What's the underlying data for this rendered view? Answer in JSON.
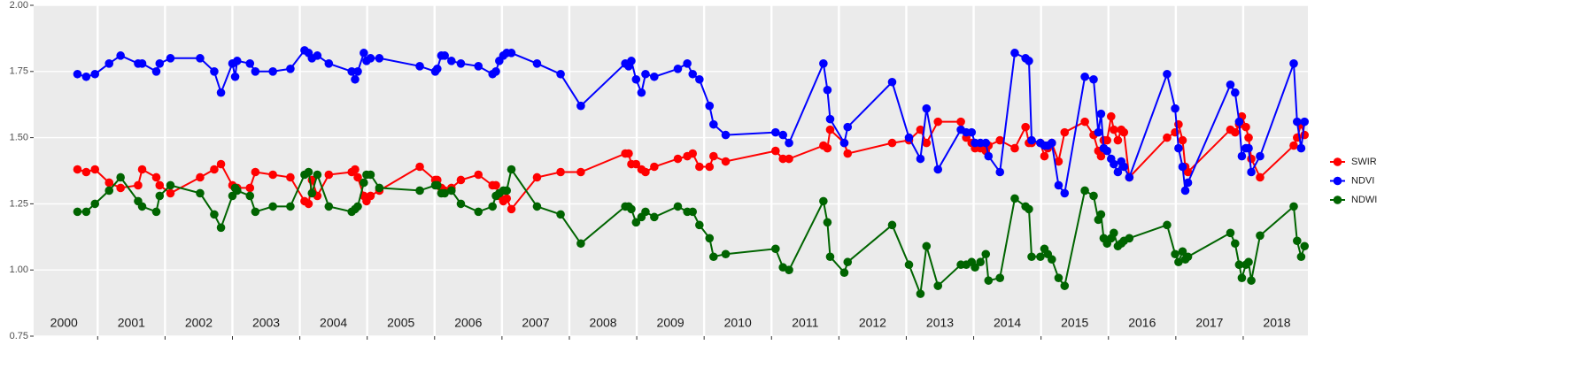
{
  "chart_data": {
    "type": "line",
    "x": [
      2000.7,
      2000.83,
      2000.96,
      2001.17,
      2001.34,
      2001.6,
      2001.66,
      2001.87,
      2001.92,
      2002.08,
      2002.52,
      2002.73,
      2002.83,
      2003.0,
      2003.04,
      2003.07,
      2003.26,
      2003.34,
      2003.6,
      2003.86,
      2004.07,
      2004.13,
      2004.18,
      2004.26,
      2004.43,
      2004.77,
      2004.82,
      2004.86,
      2004.95,
      2004.99,
      2005.05,
      2005.18,
      2005.78,
      2006.01,
      2006.04,
      2006.1,
      2006.15,
      2006.25,
      2006.39,
      2006.65,
      2006.86,
      2006.91,
      2006.96,
      2007.02,
      2007.07,
      2007.14,
      2007.52,
      2007.87,
      2008.17,
      2008.83,
      2008.88,
      2008.92,
      2008.99,
      2009.07,
      2009.13,
      2009.26,
      2009.61,
      2009.75,
      2009.83,
      2009.93,
      2010.08,
      2010.14,
      2010.32,
      2011.06,
      2011.17,
      2011.26,
      2011.77,
      2011.83,
      2011.87,
      2012.08,
      2012.13,
      2012.79,
      2013.04,
      2013.21,
      2013.3,
      2013.47,
      2013.81,
      2013.89,
      2013.97,
      2014.02,
      2014.1,
      2014.18,
      2014.22,
      2014.39,
      2014.61,
      2014.77,
      2014.82,
      2014.86,
      2014.99,
      2015.05,
      2015.1,
      2015.16,
      2015.26,
      2015.35,
      2015.65,
      2015.78,
      2015.85,
      2015.89,
      2015.93,
      2015.98,
      2016.04,
      2016.08,
      2016.14,
      2016.19,
      2016.23,
      2016.31,
      2016.87,
      2016.99,
      2017.04,
      2017.1,
      2017.14,
      2017.18,
      2017.81,
      2017.88,
      2017.94,
      2017.98,
      2018.04,
      2018.08,
      2018.12,
      2018.25,
      2018.75,
      2018.8,
      2018.86,
      2018.91
    ],
    "series": [
      {
        "name": "SWIR",
        "color": "#ff0000",
        "values": [
          1.38,
          1.37,
          1.38,
          1.33,
          1.31,
          1.32,
          1.38,
          1.35,
          1.32,
          1.29,
          1.35,
          1.38,
          1.4,
          1.32,
          1.31,
          1.31,
          1.31,
          1.37,
          1.36,
          1.35,
          1.26,
          1.25,
          1.34,
          1.28,
          1.36,
          1.37,
          1.38,
          1.35,
          1.28,
          1.26,
          1.28,
          1.3,
          1.39,
          1.34,
          1.34,
          1.31,
          1.3,
          1.31,
          1.34,
          1.36,
          1.32,
          1.32,
          1.28,
          1.26,
          1.27,
          1.23,
          1.35,
          1.37,
          1.37,
          1.44,
          1.44,
          1.4,
          1.4,
          1.38,
          1.37,
          1.39,
          1.42,
          1.43,
          1.44,
          1.39,
          1.39,
          1.43,
          1.41,
          1.45,
          1.42,
          1.42,
          1.47,
          1.46,
          1.53,
          1.48,
          1.44,
          1.48,
          1.49,
          1.53,
          1.48,
          1.56,
          1.56,
          1.5,
          1.48,
          1.46,
          1.46,
          1.45,
          1.47,
          1.49,
          1.46,
          1.54,
          1.48,
          1.48,
          1.48,
          1.43,
          1.46,
          1.48,
          1.41,
          1.52,
          1.56,
          1.51,
          1.45,
          1.43,
          1.49,
          1.49,
          1.58,
          1.53,
          1.49,
          1.53,
          1.52,
          1.35,
          1.5,
          1.52,
          1.55,
          1.49,
          1.39,
          1.37,
          1.53,
          1.52,
          1.55,
          1.58,
          1.54,
          1.5,
          1.42,
          1.35,
          1.47,
          1.5,
          1.55,
          1.51
        ]
      },
      {
        "name": "NDVI",
        "color": "#0000ff",
        "values": [
          1.74,
          1.73,
          1.74,
          1.78,
          1.81,
          1.78,
          1.78,
          1.75,
          1.78,
          1.8,
          1.8,
          1.75,
          1.67,
          1.78,
          1.73,
          1.79,
          1.78,
          1.75,
          1.75,
          1.76,
          1.83,
          1.82,
          1.8,
          1.81,
          1.78,
          1.75,
          1.72,
          1.75,
          1.82,
          1.79,
          1.8,
          1.8,
          1.77,
          1.75,
          1.76,
          1.81,
          1.81,
          1.79,
          1.78,
          1.77,
          1.74,
          1.75,
          1.79,
          1.81,
          1.82,
          1.82,
          1.78,
          1.74,
          1.62,
          1.78,
          1.77,
          1.79,
          1.72,
          1.67,
          1.74,
          1.73,
          1.76,
          1.78,
          1.74,
          1.72,
          1.62,
          1.55,
          1.51,
          1.52,
          1.51,
          1.48,
          1.78,
          1.68,
          1.57,
          1.48,
          1.54,
          1.71,
          1.5,
          1.42,
          1.61,
          1.38,
          1.53,
          1.52,
          1.52,
          1.48,
          1.48,
          1.48,
          1.43,
          1.37,
          1.82,
          1.8,
          1.79,
          1.49,
          1.48,
          1.47,
          1.47,
          1.48,
          1.32,
          1.29,
          1.73,
          1.72,
          1.52,
          1.59,
          1.46,
          1.45,
          1.42,
          1.4,
          1.37,
          1.41,
          1.39,
          1.35,
          1.74,
          1.61,
          1.46,
          1.39,
          1.3,
          1.33,
          1.7,
          1.67,
          1.56,
          1.43,
          1.46,
          1.46,
          1.37,
          1.43,
          1.78,
          1.56,
          1.46,
          1.56
        ]
      },
      {
        "name": "NDWI",
        "color": "#006400",
        "values": [
          1.22,
          1.22,
          1.25,
          1.3,
          1.35,
          1.26,
          1.24,
          1.22,
          1.28,
          1.32,
          1.29,
          1.21,
          1.16,
          1.28,
          1.31,
          1.3,
          1.28,
          1.22,
          1.24,
          1.24,
          1.36,
          1.37,
          1.29,
          1.36,
          1.24,
          1.22,
          1.23,
          1.24,
          1.33,
          1.36,
          1.36,
          1.31,
          1.3,
          1.32,
          1.32,
          1.29,
          1.29,
          1.3,
          1.25,
          1.22,
          1.24,
          1.28,
          1.29,
          1.3,
          1.3,
          1.38,
          1.24,
          1.21,
          1.1,
          1.24,
          1.24,
          1.23,
          1.18,
          1.2,
          1.22,
          1.2,
          1.24,
          1.22,
          1.22,
          1.17,
          1.12,
          1.05,
          1.06,
          1.08,
          1.01,
          1.0,
          1.26,
          1.18,
          1.05,
          0.99,
          1.03,
          1.17,
          1.02,
          0.91,
          1.09,
          0.94,
          1.02,
          1.02,
          1.03,
          1.01,
          1.03,
          1.06,
          0.96,
          0.97,
          1.27,
          1.24,
          1.23,
          1.05,
          1.05,
          1.08,
          1.06,
          1.04,
          0.97,
          0.94,
          1.3,
          1.28,
          1.19,
          1.21,
          1.12,
          1.1,
          1.12,
          1.14,
          1.09,
          1.1,
          1.11,
          1.12,
          1.17,
          1.06,
          1.03,
          1.07,
          1.04,
          1.05,
          1.14,
          1.1,
          1.02,
          0.97,
          1.02,
          1.03,
          0.96,
          1.13,
          1.24,
          1.11,
          1.05,
          1.09
        ]
      }
    ],
    "xlim": [
      2000.05,
      2018.96
    ],
    "xticks": [
      2001,
      2002,
      2003,
      2004,
      2005,
      2006,
      2007,
      2008,
      2009,
      2010,
      2011,
      2012,
      2013,
      2014,
      2015,
      2016,
      2017,
      2018
    ],
    "year_labels": [
      {
        "value": 2000.5,
        "label": "2000"
      },
      {
        "value": 2001.5,
        "label": "2001"
      },
      {
        "value": 2002.5,
        "label": "2002"
      },
      {
        "value": 2003.5,
        "label": "2003"
      },
      {
        "value": 2004.5,
        "label": "2004"
      },
      {
        "value": 2005.5,
        "label": "2005"
      },
      {
        "value": 2006.5,
        "label": "2006"
      },
      {
        "value": 2007.5,
        "label": "2007"
      },
      {
        "value": 2008.5,
        "label": "2008"
      },
      {
        "value": 2009.5,
        "label": "2009"
      },
      {
        "value": 2010.5,
        "label": "2010"
      },
      {
        "value": 2011.5,
        "label": "2011"
      },
      {
        "value": 2012.5,
        "label": "2012"
      },
      {
        "value": 2013.5,
        "label": "2013"
      },
      {
        "value": 2014.5,
        "label": "2014"
      },
      {
        "value": 2015.5,
        "label": "2015"
      },
      {
        "value": 2016.5,
        "label": "2016"
      },
      {
        "value": 2017.5,
        "label": "2017"
      },
      {
        "value": 2018.5,
        "label": "2018"
      }
    ],
    "ylim": [
      0.75,
      2.0
    ],
    "yticks": [
      {
        "value": 0.75,
        "label": "0.75"
      },
      {
        "value": 1.0,
        "label": "1.00"
      },
      {
        "value": 1.25,
        "label": "1.25"
      },
      {
        "value": 1.5,
        "label": "1.50"
      },
      {
        "value": 1.75,
        "label": "1.75"
      },
      {
        "value": 2.0,
        "label": "2.00"
      }
    ],
    "grid": true,
    "legend": "right"
  }
}
